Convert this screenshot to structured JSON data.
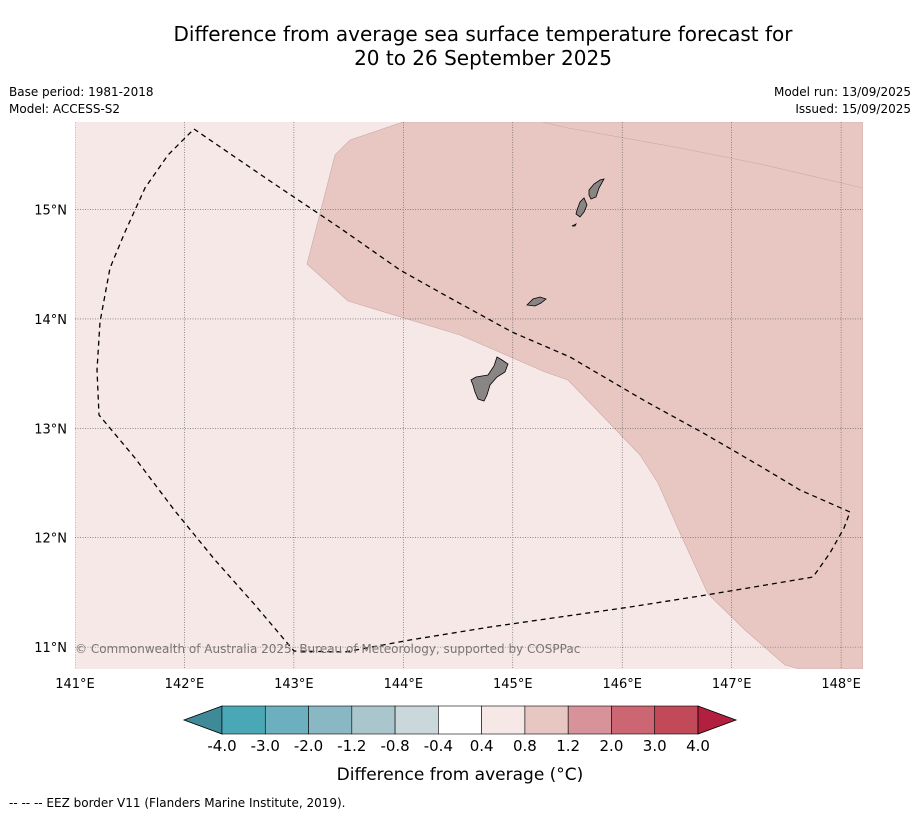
{
  "title": {
    "line1": "Difference from average sea surface temperature forecast for",
    "line2": "20 to 26 September 2025"
  },
  "meta": {
    "base_period": "Base period: 1981-2018",
    "model": "Model: ACCESS-S2",
    "model_run": "Model run: 13/09/2025",
    "issued": "Issued: 15/09/2025"
  },
  "map": {
    "lon_range": [
      141.0,
      148.2
    ],
    "lat_range": [
      10.8,
      15.8
    ],
    "lon_ticks": [
      {
        "v": 141,
        "label": "141°E"
      },
      {
        "v": 142,
        "label": "142°E"
      },
      {
        "v": 143,
        "label": "143°E"
      },
      {
        "v": 144,
        "label": "144°E"
      },
      {
        "v": 145,
        "label": "145°E"
      },
      {
        "v": 146,
        "label": "146°E"
      },
      {
        "v": 147,
        "label": "147°E"
      },
      {
        "v": 148,
        "label": "148°E"
      }
    ],
    "lat_ticks": [
      {
        "v": 11,
        "label": "11°N"
      },
      {
        "v": 12,
        "label": "12°N"
      },
      {
        "v": 13,
        "label": "13°N"
      },
      {
        "v": 14,
        "label": "14°N"
      },
      {
        "v": 15,
        "label": "15°N"
      }
    ],
    "background_color": "#f5e8e7",
    "warm_anomaly_color": "#e8c6c2",
    "land_color": "#8a8585",
    "attribution": "© Commonwealth of Australia 2025, Bureau of Meteorology, supported by COSPPac"
  },
  "colorbar": {
    "label": "Difference from average (°C)",
    "colors": [
      "#3e8a98",
      "#4aa7b6",
      "#6cb0bf",
      "#8ab7c4",
      "#a8c6cc",
      "#cad8db",
      "#ffffff",
      "#f5e8e7",
      "#e8c6c2",
      "#d8939a",
      "#cc6673",
      "#c14958",
      "#b3203f"
    ],
    "ticks": [
      "-4.0",
      "-3.0",
      "-2.0",
      "-1.2",
      "-0.8",
      "-0.4",
      "0.4",
      "0.8",
      "1.2",
      "2.0",
      "3.0",
      "4.0"
    ]
  },
  "legend": {
    "eez": "--  --  -- EEZ border V11 (Flanders Marine Institute, 2019)."
  }
}
